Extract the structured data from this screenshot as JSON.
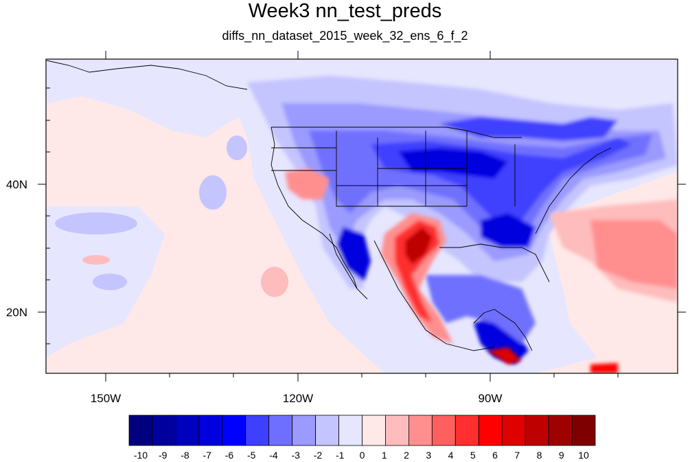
{
  "title": "Week3 nn_test_preds",
  "subtitle": "diffs_nn_dataset_2015_week_32_ens_6_f_2",
  "axes": {
    "x_labels": [
      "150W",
      "120W",
      "90W"
    ],
    "y_labels": [
      "40N",
      "20N"
    ]
  },
  "colorbar": {
    "labels": [
      "-10",
      "-9",
      "-8",
      "-7",
      "-6",
      "-5",
      "-4",
      "-3",
      "-2",
      "-1",
      "0",
      "1",
      "2",
      "3",
      "4",
      "5",
      "6",
      "7",
      "8",
      "9",
      "10"
    ],
    "colors": [
      "#00007f",
      "#00009f",
      "#0000bf",
      "#0000df",
      "#0000ff",
      "#3f3fff",
      "#6f6fff",
      "#9a9aff",
      "#c4c4ff",
      "#e6e6ff",
      "#ffe8e8",
      "#ffbcbc",
      "#ff8f8f",
      "#ff5f5f",
      "#ff2f2f",
      "#ff0000",
      "#df0000",
      "#bf0000",
      "#9f0000",
      "#7f0000"
    ]
  }
}
